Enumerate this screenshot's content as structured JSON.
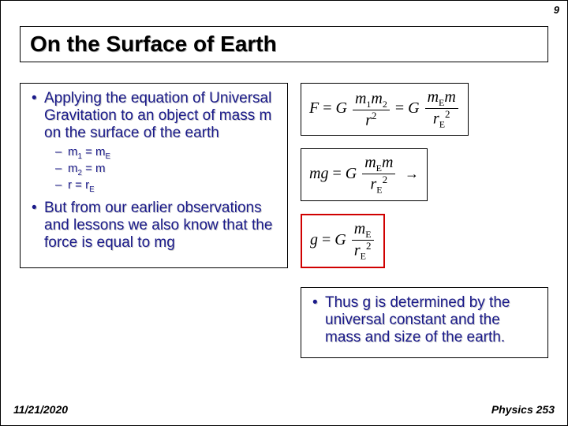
{
  "slide_number": "9",
  "title": "On the Surface of Earth",
  "left": {
    "b1": "Applying the equation of Universal Gravitation to an object of mass m on the surface of the earth",
    "s1": "m",
    "s1_sub": "1",
    "s1_eq": " = m",
    "s1_subE": "E",
    "s2": "m",
    "s2_sub": "2",
    "s2_eq": " = m",
    "s3": "r = r",
    "s3_subE": "E",
    "b2": "But from our earlier observations and lessons we also know that the force is equal to mg"
  },
  "right": {
    "b1": "Thus g is determined by the universal constant and the mass and size of the earth."
  },
  "footer_date": "11/21/2020",
  "footer_course": "Physics 253",
  "colors": {
    "bullet_text": "#1a1a8a",
    "red_border": "#d00000"
  }
}
